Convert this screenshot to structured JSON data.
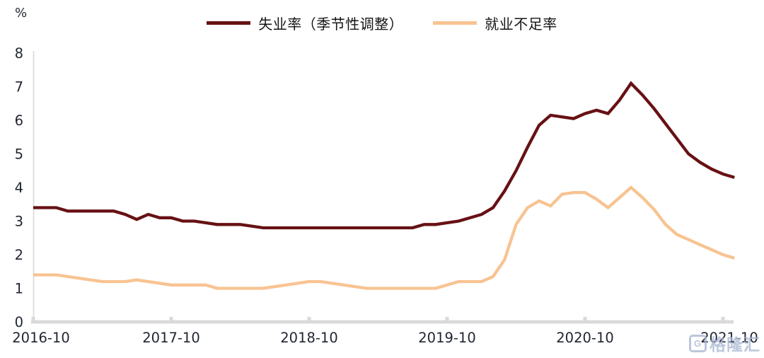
{
  "y_axis_unit": "%",
  "legend": {
    "items": [
      {
        "label": "失业率（季节性调整）",
        "color": "#671114"
      },
      {
        "label": "就业不足率",
        "color": "#F8C391"
      }
    ]
  },
  "watermark": {
    "logo_letter": "G",
    "text": "格隆汇"
  },
  "colors": {
    "axis": "#D9D9D9",
    "tick_label": "#1F2430",
    "series_dark": "#671114",
    "series_light": "#F8C391",
    "watermark": "#A9B7D2"
  },
  "chart_data": {
    "type": "line",
    "title": "",
    "xlabel": "",
    "ylabel": "%",
    "ylim": [
      0,
      8
    ],
    "yticks": [
      0,
      1,
      2,
      3,
      4,
      5,
      6,
      7,
      8
    ],
    "x_tick_labels": [
      "2016-10",
      "2017-10",
      "2018-10",
      "2019-10",
      "2020-10",
      "2021-10"
    ],
    "x_start": "2016-10",
    "x_interval": "monthly",
    "n_points": 62,
    "grid": false,
    "legend_position": "top",
    "series": [
      {
        "name": "失业率（季节性调整）",
        "color": "#671114",
        "values": [
          3.4,
          3.4,
          3.4,
          3.3,
          3.3,
          3.3,
          3.3,
          3.3,
          3.2,
          3.05,
          3.2,
          3.1,
          3.1,
          3.0,
          3.0,
          2.95,
          2.9,
          2.9,
          2.9,
          2.85,
          2.8,
          2.8,
          2.8,
          2.8,
          2.8,
          2.8,
          2.8,
          2.8,
          2.8,
          2.8,
          2.8,
          2.8,
          2.8,
          2.8,
          2.9,
          2.9,
          2.95,
          3.0,
          3.1,
          3.2,
          3.4,
          3.9,
          4.5,
          5.2,
          5.85,
          6.15,
          6.1,
          6.05,
          6.2,
          6.3,
          6.2,
          6.6,
          7.1,
          6.75,
          6.35,
          5.9,
          5.45,
          5.0,
          4.75,
          4.55,
          4.4,
          4.3
        ]
      },
      {
        "name": "就业不足率",
        "color": "#F8C391",
        "values": [
          1.4,
          1.4,
          1.4,
          1.35,
          1.3,
          1.25,
          1.2,
          1.2,
          1.2,
          1.25,
          1.2,
          1.15,
          1.1,
          1.1,
          1.1,
          1.1,
          1.0,
          1.0,
          1.0,
          1.0,
          1.0,
          1.05,
          1.1,
          1.15,
          1.2,
          1.2,
          1.15,
          1.1,
          1.05,
          1.0,
          1.0,
          1.0,
          1.0,
          1.0,
          1.0,
          1.0,
          1.1,
          1.2,
          1.2,
          1.2,
          1.35,
          1.85,
          2.9,
          3.4,
          3.6,
          3.45,
          3.8,
          3.85,
          3.85,
          3.65,
          3.4,
          3.7,
          4.0,
          3.7,
          3.35,
          2.9,
          2.6,
          2.45,
          2.3,
          2.15,
          2.0,
          1.9
        ]
      }
    ]
  }
}
